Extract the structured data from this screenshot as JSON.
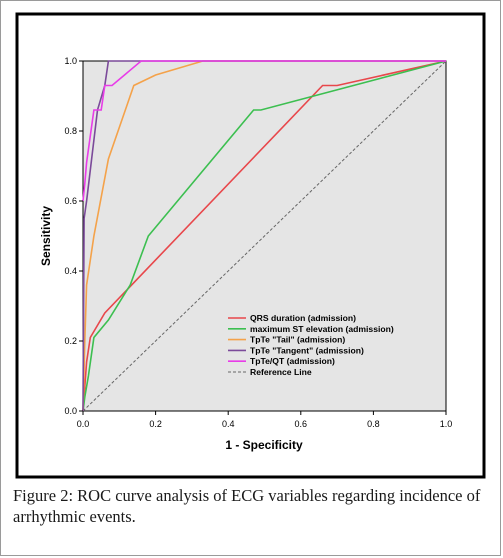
{
  "caption": {
    "label": "Figure 2:",
    "text": " ROC curve analysis of ECG variables regarding incidence of arrhythmic events."
  },
  "chart_data": {
    "type": "line",
    "xlabel": "1 - Specificity",
    "ylabel": "Sensitivity",
    "xlim": [
      0,
      1
    ],
    "ylim": [
      0,
      1
    ],
    "x_ticks": [
      "0.0",
      "0.2",
      "0.4",
      "0.6",
      "0.8",
      "1.0"
    ],
    "y_ticks": [
      "0.0",
      "0.2",
      "0.4",
      "0.6",
      "0.8",
      "1.0"
    ],
    "grid": false,
    "legend_position": "bottom-right",
    "plot_background": "#e5e5e5",
    "series": [
      {
        "name": "QRS duration (admission)",
        "color": "#e8474b",
        "points": [
          [
            0,
            0
          ],
          [
            0.005,
            0.07
          ],
          [
            0.01,
            0.14
          ],
          [
            0.02,
            0.21
          ],
          [
            0.06,
            0.28
          ],
          [
            0.66,
            0.93
          ],
          [
            0.7,
            0.93
          ],
          [
            1.0,
            1.0
          ]
        ]
      },
      {
        "name": "maximum ST elevation (admission)",
        "color": "#3cbf50",
        "points": [
          [
            0,
            0
          ],
          [
            0.005,
            0.04
          ],
          [
            0.015,
            0.1
          ],
          [
            0.03,
            0.21
          ],
          [
            0.07,
            0.26
          ],
          [
            0.13,
            0.36
          ],
          [
            0.18,
            0.5
          ],
          [
            0.47,
            0.86
          ],
          [
            0.49,
            0.86
          ],
          [
            1.0,
            1.0
          ]
        ]
      },
      {
        "name": "TpTe \"Tail\" (admission)",
        "color": "#f4a24a",
        "points": [
          [
            0,
            0
          ],
          [
            0.005,
            0.2
          ],
          [
            0.01,
            0.36
          ],
          [
            0.03,
            0.5
          ],
          [
            0.07,
            0.72
          ],
          [
            0.14,
            0.93
          ],
          [
            0.2,
            0.96
          ],
          [
            0.33,
            1.0
          ],
          [
            1.0,
            1.0
          ]
        ]
      },
      {
        "name": "TpTe \"Tangent\" (admission)",
        "color": "#7b4a9a",
        "points": [
          [
            0,
            0
          ],
          [
            0.003,
            0.55
          ],
          [
            0.01,
            0.6
          ],
          [
            0.04,
            0.86
          ],
          [
            0.06,
            0.93
          ],
          [
            0.07,
            1.0
          ],
          [
            1.0,
            1.0
          ]
        ]
      },
      {
        "name": "TpTe/QT (admission)",
        "color": "#e83ce8",
        "points": [
          [
            0,
            0.6
          ],
          [
            0.005,
            0.65
          ],
          [
            0.01,
            0.71
          ],
          [
            0.03,
            0.86
          ],
          [
            0.05,
            0.86
          ],
          [
            0.06,
            0.93
          ],
          [
            0.08,
            0.93
          ],
          [
            0.16,
            1.0
          ],
          [
            1.0,
            1.0
          ]
        ]
      },
      {
        "name": "Reference Line",
        "color": "#666666",
        "dashed": true,
        "points": [
          [
            0,
            0
          ],
          [
            1,
            1
          ]
        ]
      }
    ]
  }
}
